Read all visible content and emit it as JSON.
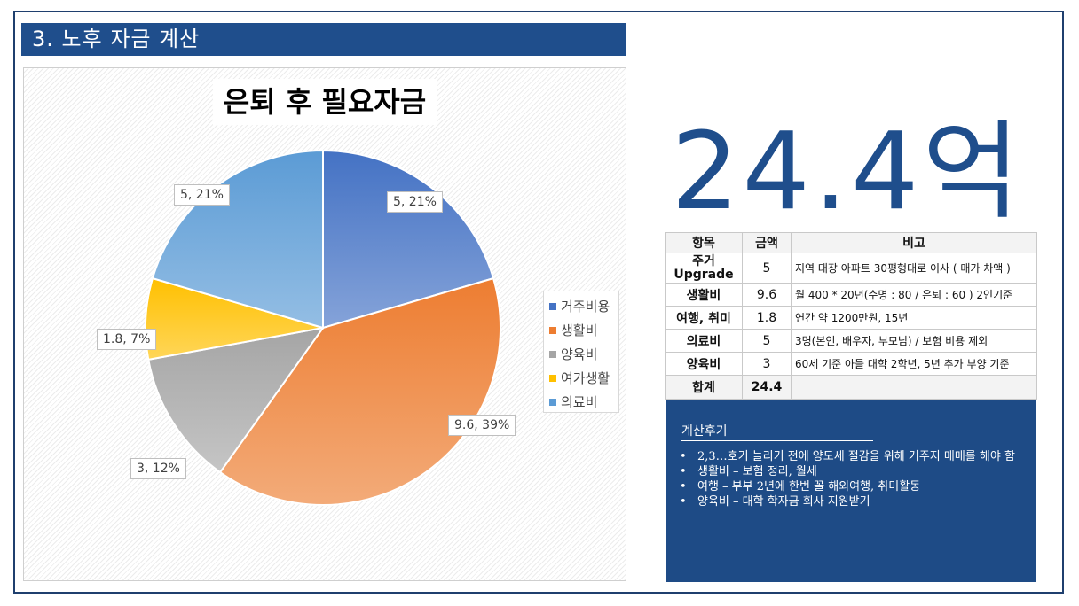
{
  "header": {
    "title": "3. 노후 자금 계산"
  },
  "chart_data": {
    "type": "pie",
    "title": "은퇴 후 필요자금",
    "categories": [
      "거주비용",
      "생활비",
      "양육비",
      "여가생활",
      "의료비"
    ],
    "values": [
      5,
      9.6,
      3,
      1.8,
      5
    ],
    "percent_labels": [
      "5, 21%",
      "9.6, 39%",
      "3, 12%",
      "1.8, 7%",
      "5, 21%"
    ],
    "colors": [
      "#4472c4",
      "#ed7d31",
      "#a5a5a5",
      "#ffc000",
      "#5b9bd5"
    ],
    "legend_position": "right"
  },
  "summary": {
    "total_label": "24.4억"
  },
  "table": {
    "headers": [
      "항목",
      "금액",
      "비고"
    ],
    "rows": [
      {
        "item": "주거\nUpgrade",
        "amount": "5",
        "note": "지역 대장 아파트 30평형대로 이사 ( 매가 차액 )"
      },
      {
        "item": "생활비",
        "amount": "9.6",
        "note": "월 400 * 20년(수명 : 80 / 은퇴 : 60 ) 2인기준"
      },
      {
        "item": "여행, 취미",
        "amount": "1.8",
        "note": "연간 약 1200만원, 15년"
      },
      {
        "item": "의료비",
        "amount": "5",
        "note": "3명(본인, 배우자, 부모님) / 보험 비용 제외"
      },
      {
        "item": "양육비",
        "amount": "3",
        "note": "60세 기준 아들 대학 2학년, 5년 추가 부양 기준"
      }
    ],
    "total": {
      "item": "합계",
      "amount": "24.4",
      "note": ""
    }
  },
  "review": {
    "title": "계산후기",
    "items": [
      "2,3…호기 늘리기 전에 양도세 절감을 위해 거주지 매매를 해야 함",
      "생활비 – 보험 정리, 월세",
      "여행 – 부부 2년에 한번 꼴 해외여행, 취미활동",
      "양육비 – 대학 학자금  회사 지원받기"
    ]
  }
}
